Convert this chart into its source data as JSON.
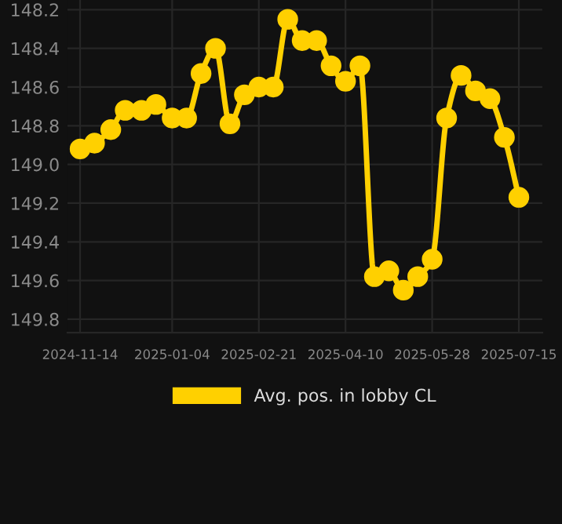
{
  "chart_data": {
    "type": "line",
    "x": [
      "2024-11-14",
      "2024-11-22",
      "2024-12-01",
      "2024-12-09",
      "2024-12-18",
      "2024-12-26",
      "2025-01-04",
      "2025-01-12",
      "2025-01-20",
      "2025-01-28",
      "2025-02-05",
      "2025-02-13",
      "2025-02-21",
      "2025-03-01",
      "2025-03-09",
      "2025-03-17",
      "2025-03-25",
      "2025-04-02",
      "2025-04-10",
      "2025-04-18",
      "2025-04-26",
      "2025-05-04",
      "2025-05-12",
      "2025-05-20",
      "2025-05-28",
      "2025-06-05",
      "2025-06-13",
      "2025-06-21",
      "2025-06-29",
      "2025-07-07",
      "2025-07-15"
    ],
    "series": [
      {
        "name": "Avg. pos. in lobby CL",
        "color": "#ffd000",
        "values": [
          148.92,
          148.89,
          148.82,
          148.72,
          148.72,
          148.69,
          148.76,
          148.76,
          148.53,
          148.4,
          148.79,
          148.64,
          148.6,
          148.6,
          148.25,
          148.36,
          148.36,
          148.49,
          148.57,
          148.49,
          149.58,
          149.55,
          149.65,
          149.58,
          149.49,
          148.76,
          148.54,
          148.62,
          148.66,
          148.86,
          149.17
        ]
      }
    ],
    "xlim": [
      "2024-11-07",
      "2025-07-28"
    ],
    "xticks": [
      "2024-11-14",
      "2025-01-04",
      "2025-02-21",
      "2025-04-10",
      "2025-05-28",
      "2025-07-15"
    ],
    "ylim": [
      149.87,
      148.15
    ],
    "yticks": [
      {
        "value": 148.2,
        "label": "148.2"
      },
      {
        "value": 148.4,
        "label": "148.4"
      },
      {
        "value": 148.6,
        "label": "148.6"
      },
      {
        "value": 148.8,
        "label": "148.8"
      },
      {
        "value": 149.0,
        "label": "149.0"
      },
      {
        "value": 149.2,
        "label": "149.2"
      },
      {
        "value": 149.4,
        "label": "149.4"
      },
      {
        "value": 149.6,
        "label": "149.6"
      },
      {
        "value": 149.8,
        "label": "149.8"
      }
    ],
    "grid": true,
    "legend": "bottom",
    "marker": "circle",
    "line_style": "solid"
  }
}
